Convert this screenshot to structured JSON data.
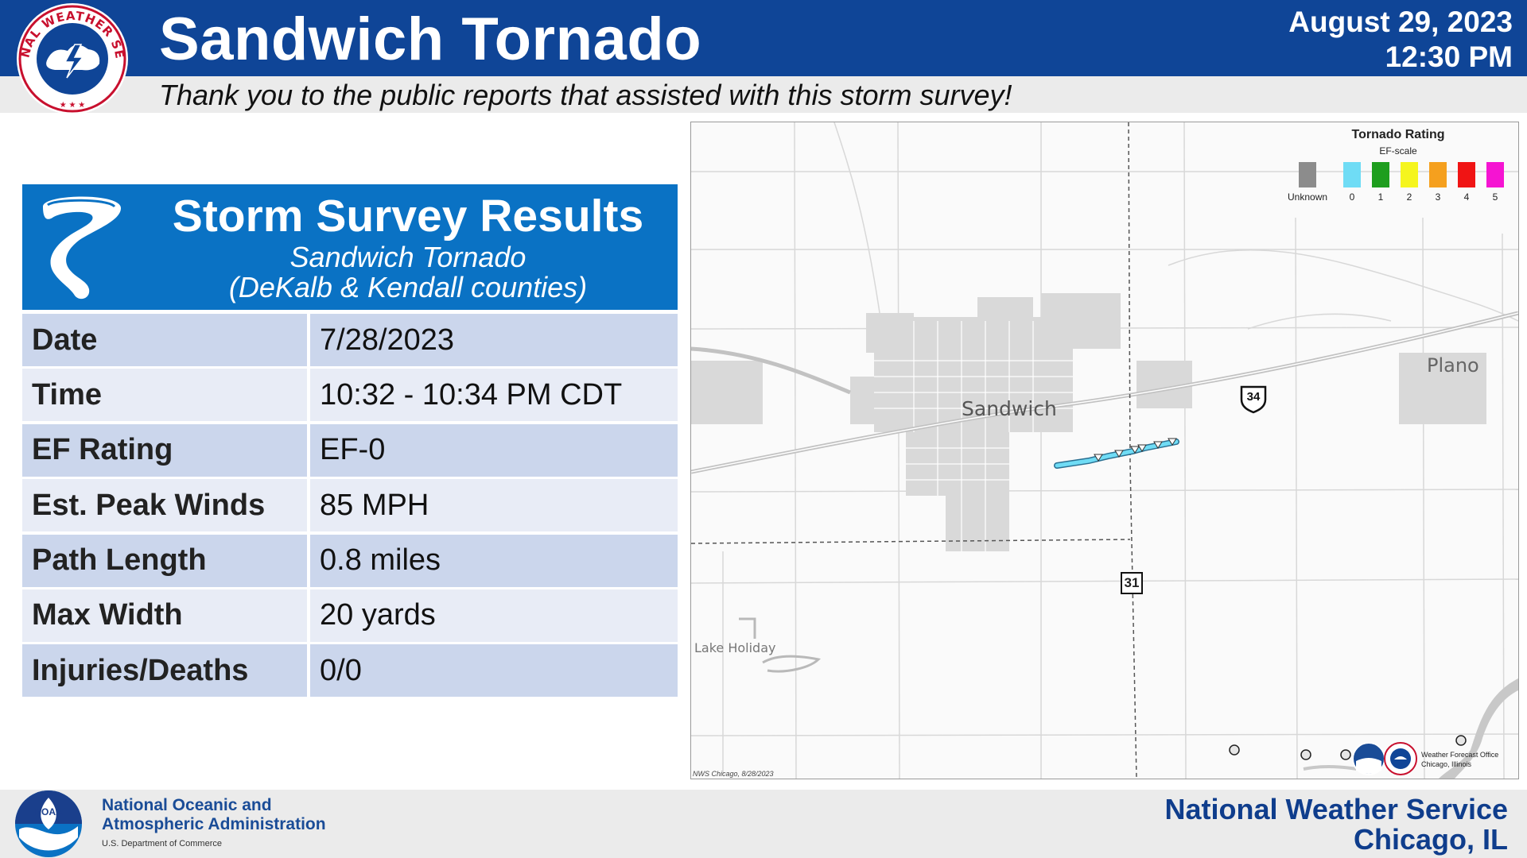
{
  "header": {
    "title": "Sandwich Tornado",
    "date": "August 29, 2023",
    "time": "12:30 PM",
    "subtitle": "Thank you to the public reports that assisted with this storm survey!",
    "logo_text": "NATIONAL WEATHER SERVICE"
  },
  "results": {
    "title": "Storm Survey Results",
    "subtitle_line1": "Sandwich Tornado",
    "subtitle_line2": "(DeKalb & Kendall counties)",
    "rows": [
      {
        "label": "Date",
        "value": "7/28/2023"
      },
      {
        "label": "Time",
        "value": "10:32 - 10:34 PM CDT"
      },
      {
        "label": "EF Rating",
        "value": "EF-0"
      },
      {
        "label": "Est. Peak Winds",
        "value": "85 MPH"
      },
      {
        "label": "Path Length",
        "value": "0.8 miles"
      },
      {
        "label": "Max Width",
        "value": "20 yards"
      },
      {
        "label": "Injuries/Deaths",
        "value": "0/0"
      }
    ]
  },
  "map": {
    "labels": {
      "sandwich": "Sandwich",
      "plano": "Plano",
      "lake_holiday": "Lake Holiday"
    },
    "shields": {
      "us": "34",
      "il": "31"
    },
    "credit": "NWS Chicago, 8/28/2023",
    "legend": {
      "title": "Tornado Rating",
      "subtitle": "EF-scale",
      "items": [
        {
          "label": "Unknown",
          "color": "#8c8c8c"
        },
        {
          "label": "0",
          "color": "#6fdcf5"
        },
        {
          "label": "1",
          "color": "#1e9e1e"
        },
        {
          "label": "2",
          "color": "#f5f51e"
        },
        {
          "label": "3",
          "color": "#f5a01e"
        },
        {
          "label": "4",
          "color": "#f01414"
        },
        {
          "label": "5",
          "color": "#f514d2"
        }
      ]
    },
    "wfo": {
      "line1": "Weather Forecast Office",
      "line2": "Chicago, Illinois"
    },
    "track_color": "#6fdcf5"
  },
  "footer": {
    "noaa_line1": "National Oceanic and",
    "noaa_line2": "Atmospheric Administration",
    "noaa_line3": "U.S. Department of Commerce",
    "noaa_logo_text": "NOAA",
    "nws_line1": "National Weather Service",
    "nws_line2": "Chicago, IL"
  },
  "colors": {
    "header_blue": "#0f4597",
    "panel_blue": "#0a72c4",
    "row_dark": "#cbd6ec",
    "row_light": "#e8ecf6"
  }
}
